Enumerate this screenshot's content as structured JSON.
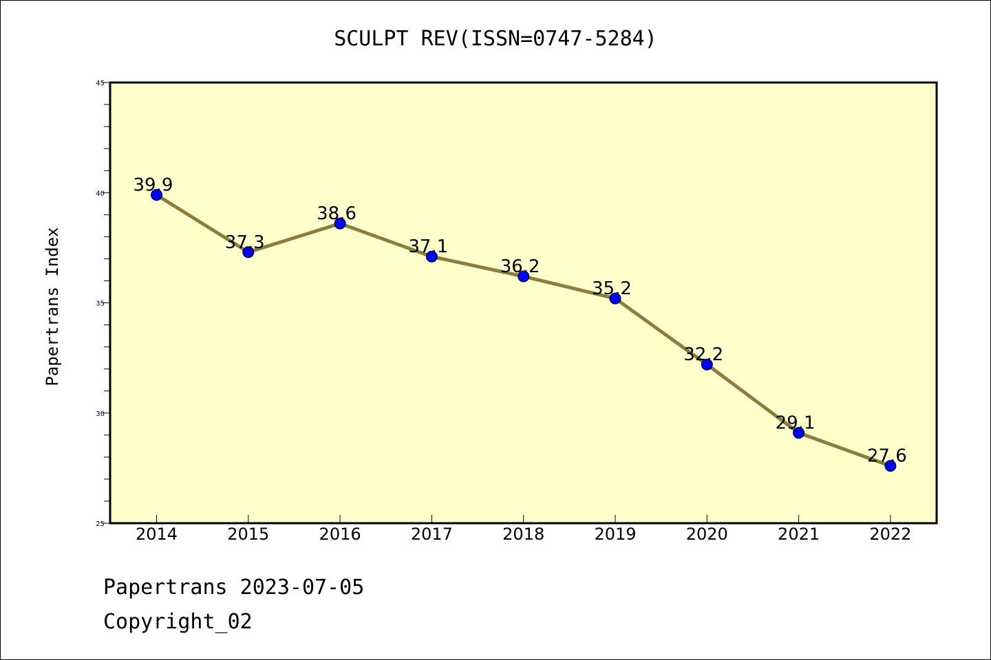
{
  "chart_data": {
    "type": "line",
    "title": "SCULPT REV(ISSN=0747-5284)",
    "ylabel": "Papertrans Index",
    "xlabel": "",
    "categories": [
      "2014",
      "2015",
      "2016",
      "2017",
      "2018",
      "2019",
      "2020",
      "2021",
      "2022"
    ],
    "series": [
      {
        "values": [
          39.9,
          37.3,
          38.6,
          37.1,
          36.2,
          35.2,
          32.2,
          29.1,
          27.6
        ],
        "line_color": "#8b7d3a",
        "marker_color": "#0000ff"
      }
    ],
    "data_labels": [
      "39.9",
      "37.3",
      "38.6",
      "37.1",
      "36.2",
      "35.2",
      "32.2",
      "29.1",
      "27.6"
    ],
    "ylim": [
      25,
      45
    ],
    "yticks": [
      "25",
      "30",
      "35",
      "40",
      "45"
    ],
    "plot_background": "#ffffcc",
    "grid": false,
    "legend": "none"
  },
  "footer": {
    "line1": "Papertrans 2023-07-05",
    "line2": "Copyright_02"
  }
}
